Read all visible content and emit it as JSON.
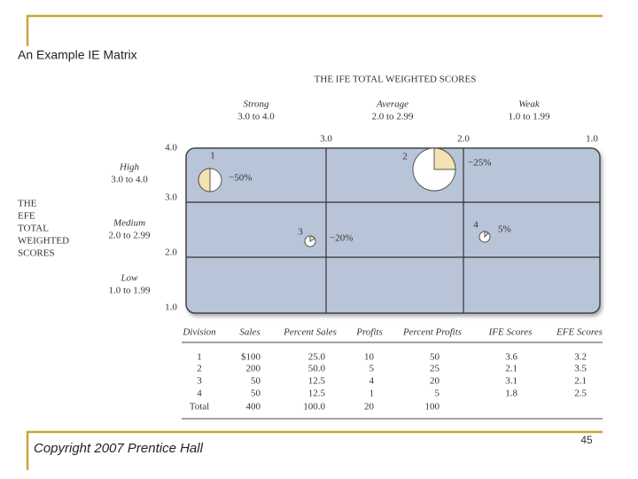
{
  "slide": {
    "title": "An Example IE Matrix",
    "footer": "Copyright 2007 Prentice Hall",
    "page_number": "45"
  },
  "matrix": {
    "x_axis_title": "THE IFE TOTAL WEIGHTED SCORES",
    "x_columns": [
      {
        "name": "Strong",
        "range": "3.0 to 4.0"
      },
      {
        "name": "Average",
        "range": "2.0 to 2.99"
      },
      {
        "name": "Weak",
        "range": "1.0 to 1.99"
      }
    ],
    "x_ticks": [
      "3.0",
      "2.0",
      "1.0"
    ],
    "y_axis_title": [
      "THE",
      "EFE",
      "TOTAL",
      "WEIGHTED",
      "SCORES"
    ],
    "y_rows": [
      {
        "name": "High",
        "range": "3.0 to 4.0"
      },
      {
        "name": "Medium",
        "range": "2.0 to 2.99"
      },
      {
        "name": "Low",
        "range": "1.0 to 1.99"
      }
    ],
    "y_ticks": [
      "4.0",
      "3.0",
      "2.0",
      "1.0"
    ],
    "divisions": [
      {
        "label": "1",
        "percent": "−50%"
      },
      {
        "label": "2",
        "percent": "−25%"
      },
      {
        "label": "3",
        "percent": "−20%"
      },
      {
        "label": "4",
        "percent": "5%"
      }
    ]
  },
  "table": {
    "headers": [
      "Division",
      "Sales",
      "Percent Sales",
      "Profits",
      "Percent Profits",
      "IFE Scores",
      "EFE Scores"
    ],
    "rows": [
      [
        "1",
        "$100",
        "25.0",
        "10",
        "50",
        "3.6",
        "3.2"
      ],
      [
        "2",
        "200",
        "50.0",
        "5",
        "25",
        "2.1",
        "3.5"
      ],
      [
        "3",
        "50",
        "12.5",
        "4",
        "20",
        "3.1",
        "2.1"
      ],
      [
        "4",
        "50",
        "12.5",
        "1",
        "5",
        "1.8",
        "2.5"
      ],
      [
        "Total",
        "400",
        "100.0",
        "20",
        "100"
      ]
    ]
  }
}
